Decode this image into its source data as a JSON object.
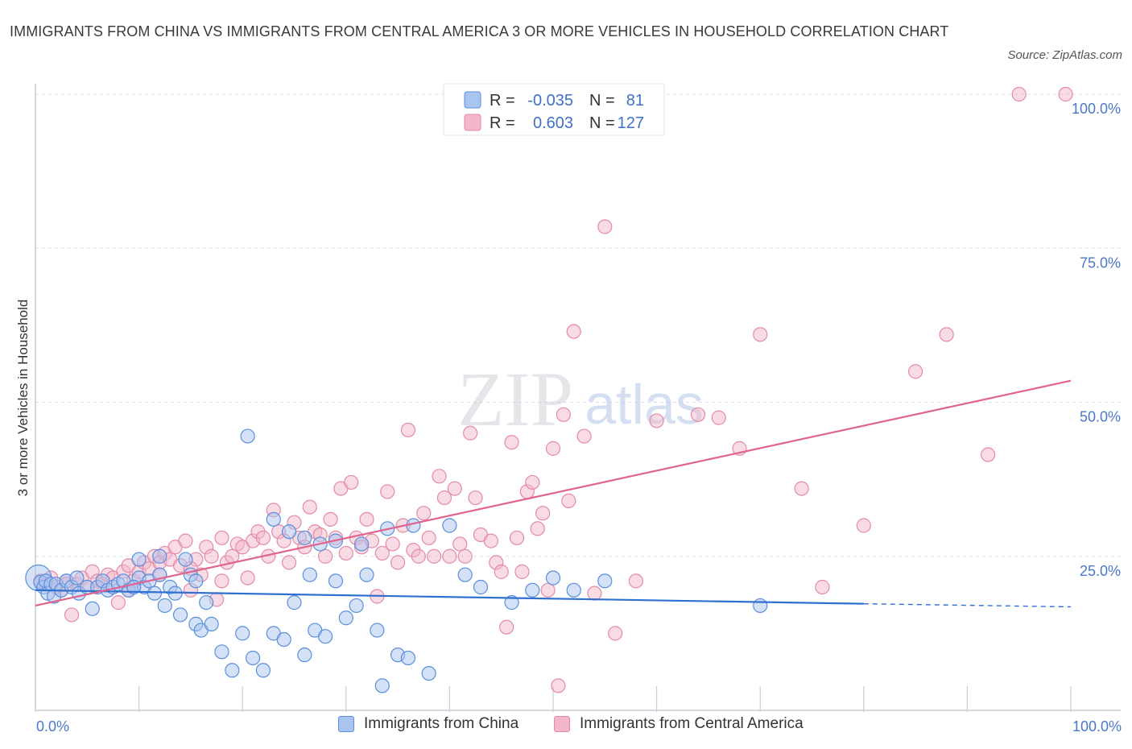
{
  "header": {
    "title": "IMMIGRANTS FROM CHINA VS IMMIGRANTS FROM CENTRAL AMERICA 3 OR MORE VEHICLES IN HOUSEHOLD CORRELATION CHART",
    "source": "Source: ZipAtlas.com"
  },
  "watermark": {
    "zip": "ZIP",
    "atlas": "atlas"
  },
  "legend_top": {
    "rows": [
      {
        "r_label": "R =",
        "r_value": "-0.035",
        "n_label": "N =",
        "n_value": "81"
      },
      {
        "r_label": "R =",
        "r_value": "0.603",
        "n_label": "N =",
        "n_value": "127"
      }
    ]
  },
  "legend_bottom": {
    "china": "Immigrants from China",
    "central_america": "Immigrants from Central America"
  },
  "colors": {
    "china_fill": "#a9c4ef",
    "china_stroke": "#5a8fdc",
    "china_line": "#2e6fd0",
    "ca_fill": "#f4b7ca",
    "ca_stroke": "#e48aa8",
    "ca_line": "#e0648e",
    "tick_text": "#4a78c8",
    "grid": "#d8dde6"
  },
  "chart_data": {
    "type": "scatter",
    "title": "IMMIGRANTS FROM CHINA VS IMMIGRANTS FROM CENTRAL AMERICA 3 OR MORE VEHICLES IN HOUSEHOLD CORRELATION CHART",
    "xlabel": "",
    "ylabel": "3 or more Vehicles in Household",
    "xlim": [
      0,
      100
    ],
    "ylim": [
      0,
      100
    ],
    "x_tick_labels": [
      "0.0%",
      "100.0%"
    ],
    "y_tick_labels": [
      "25.0%",
      "50.0%",
      "75.0%",
      "100.0%"
    ],
    "y_ticks": [
      25,
      50,
      75,
      100
    ],
    "grid": true,
    "legend_position": "top-center",
    "series": [
      {
        "name": "Immigrants from China",
        "R": -0.035,
        "N": 81,
        "trend": {
          "x0": 0,
          "y0": 19.5,
          "x1": 80,
          "y1": 17.3,
          "dashed_to_x": 100,
          "dashed_to_y": 16.8
        },
        "points": [
          [
            0.3,
            21.5
          ],
          [
            0.5,
            20.8
          ],
          [
            0.8,
            20.0
          ],
          [
            1.0,
            21.0
          ],
          [
            1.2,
            19.0
          ],
          [
            1.5,
            20.5
          ],
          [
            1.8,
            18.5
          ],
          [
            2.0,
            20.5
          ],
          [
            2.5,
            19.5
          ],
          [
            3.0,
            21.0
          ],
          [
            3.5,
            20.0
          ],
          [
            4.0,
            21.5
          ],
          [
            4.2,
            19.0
          ],
          [
            5.0,
            20.0
          ],
          [
            5.5,
            16.5
          ],
          [
            6.0,
            20.0
          ],
          [
            6.5,
            21.0
          ],
          [
            7.0,
            19.5
          ],
          [
            7.5,
            20.0
          ],
          [
            8.0,
            20.5
          ],
          [
            8.5,
            21.0
          ],
          [
            9.0,
            19.5
          ],
          [
            9.5,
            20.0
          ],
          [
            10.0,
            21.5
          ],
          [
            10.5,
            20.0
          ],
          [
            11.0,
            21.0
          ],
          [
            11.5,
            19.0
          ],
          [
            12.0,
            22.0
          ],
          [
            12.5,
            17.0
          ],
          [
            13.0,
            20.0
          ],
          [
            13.5,
            19.0
          ],
          [
            14.0,
            15.5
          ],
          [
            14.5,
            24.5
          ],
          [
            15.0,
            22.0
          ],
          [
            15.5,
            14.0
          ],
          [
            16.0,
            13.0
          ],
          [
            16.5,
            17.5
          ],
          [
            17.0,
            14.0
          ],
          [
            18.0,
            9.5
          ],
          [
            19.0,
            6.5
          ],
          [
            20.0,
            12.5
          ],
          [
            21.0,
            8.5
          ],
          [
            22.0,
            6.5
          ],
          [
            23.0,
            12.5
          ],
          [
            24.0,
            11.5
          ],
          [
            24.5,
            29.0
          ],
          [
            25.0,
            17.5
          ],
          [
            26.0,
            9.0
          ],
          [
            26.5,
            22.0
          ],
          [
            27.0,
            13.0
          ],
          [
            28.0,
            12.0
          ],
          [
            29.0,
            21.0
          ],
          [
            30.0,
            15.0
          ],
          [
            31.0,
            17.0
          ],
          [
            32.0,
            22.0
          ],
          [
            33.0,
            13.0
          ],
          [
            33.5,
            4.0
          ],
          [
            35.0,
            9.0
          ],
          [
            36.0,
            8.5
          ],
          [
            38.0,
            6.0
          ],
          [
            9.5,
            20.0
          ],
          [
            12.0,
            25.0
          ],
          [
            10.0,
            24.5
          ],
          [
            15.5,
            21.0
          ],
          [
            20.5,
            44.5
          ],
          [
            23.0,
            31.0
          ],
          [
            26.0,
            28.0
          ],
          [
            27.5,
            27.0
          ],
          [
            29.0,
            27.5
          ],
          [
            31.5,
            27.0
          ],
          [
            34.0,
            29.5
          ],
          [
            36.5,
            30.0
          ],
          [
            40.0,
            30.0
          ],
          [
            41.5,
            22.0
          ],
          [
            43.0,
            20.0
          ],
          [
            46.0,
            17.5
          ],
          [
            48.0,
            19.5
          ],
          [
            50.0,
            21.5
          ],
          [
            52.0,
            19.5
          ],
          [
            55.0,
            21.0
          ],
          [
            70.0,
            17.0
          ]
        ]
      },
      {
        "name": "Immigrants from Central America",
        "R": 0.603,
        "N": 127,
        "trend": {
          "x0": 0,
          "y0": 17.0,
          "x1": 100,
          "y1": 53.5
        },
        "points": [
          [
            0.5,
            21.0
          ],
          [
            1.0,
            20.5
          ],
          [
            1.5,
            21.5
          ],
          [
            2.0,
            20.0
          ],
          [
            2.5,
            19.5
          ],
          [
            3.0,
            21.0
          ],
          [
            3.5,
            15.5
          ],
          [
            4.0,
            20.5
          ],
          [
            4.5,
            21.5
          ],
          [
            5.0,
            20.0
          ],
          [
            5.5,
            22.5
          ],
          [
            6.0,
            21.0
          ],
          [
            6.5,
            20.5
          ],
          [
            7.0,
            22.0
          ],
          [
            7.5,
            21.5
          ],
          [
            8.0,
            17.5
          ],
          [
            8.5,
            22.5
          ],
          [
            9.0,
            23.5
          ],
          [
            9.5,
            21.0
          ],
          [
            10.0,
            22.5
          ],
          [
            10.5,
            24.0
          ],
          [
            11.0,
            23.0
          ],
          [
            11.5,
            25.0
          ],
          [
            12.0,
            24.0
          ],
          [
            12.5,
            25.5
          ],
          [
            13.0,
            24.5
          ],
          [
            13.5,
            26.5
          ],
          [
            14.0,
            23.5
          ],
          [
            14.5,
            27.5
          ],
          [
            15.0,
            19.5
          ],
          [
            15.5,
            24.5
          ],
          [
            16.0,
            22.0
          ],
          [
            16.5,
            26.5
          ],
          [
            17.0,
            25.0
          ],
          [
            17.5,
            18.0
          ],
          [
            18.0,
            28.0
          ],
          [
            18.5,
            24.0
          ],
          [
            19.0,
            25.0
          ],
          [
            19.5,
            27.0
          ],
          [
            20.0,
            26.5
          ],
          [
            20.5,
            21.5
          ],
          [
            21.0,
            27.5
          ],
          [
            21.5,
            29.0
          ],
          [
            22.0,
            28.0
          ],
          [
            22.5,
            25.0
          ],
          [
            23.0,
            32.5
          ],
          [
            23.5,
            29.0
          ],
          [
            24.0,
            27.5
          ],
          [
            24.5,
            24.0
          ],
          [
            25.0,
            30.5
          ],
          [
            25.5,
            28.0
          ],
          [
            26.0,
            26.5
          ],
          [
            26.5,
            33.0
          ],
          [
            27.0,
            29.0
          ],
          [
            27.5,
            28.5
          ],
          [
            28.0,
            25.0
          ],
          [
            28.5,
            31.0
          ],
          [
            29.0,
            28.0
          ],
          [
            29.5,
            36.0
          ],
          [
            30.0,
            25.5
          ],
          [
            30.5,
            37.0
          ],
          [
            31.0,
            28.0
          ],
          [
            31.5,
            26.5
          ],
          [
            32.0,
            31.0
          ],
          [
            32.5,
            27.5
          ],
          [
            33.0,
            18.5
          ],
          [
            33.5,
            25.5
          ],
          [
            34.0,
            35.5
          ],
          [
            34.5,
            27.0
          ],
          [
            35.0,
            24.0
          ],
          [
            35.5,
            30.0
          ],
          [
            36.0,
            45.5
          ],
          [
            36.5,
            26.0
          ],
          [
            37.0,
            25.0
          ],
          [
            37.5,
            32.0
          ],
          [
            38.0,
            28.0
          ],
          [
            38.5,
            25.0
          ],
          [
            39.0,
            38.0
          ],
          [
            39.5,
            34.5
          ],
          [
            40.0,
            25.0
          ],
          [
            40.5,
            36.0
          ],
          [
            41.0,
            27.0
          ],
          [
            41.5,
            25.0
          ],
          [
            42.0,
            45.0
          ],
          [
            42.5,
            34.5
          ],
          [
            43.0,
            28.5
          ],
          [
            44.0,
            27.5
          ],
          [
            44.5,
            24.0
          ],
          [
            45.0,
            22.5
          ],
          [
            45.5,
            13.5
          ],
          [
            46.0,
            43.5
          ],
          [
            46.5,
            28.0
          ],
          [
            47.0,
            22.5
          ],
          [
            47.5,
            35.5
          ],
          [
            48.0,
            37.0
          ],
          [
            48.5,
            29.5
          ],
          [
            49.0,
            32.0
          ],
          [
            49.5,
            19.5
          ],
          [
            50.0,
            42.5
          ],
          [
            50.5,
            4.0
          ],
          [
            51.0,
            48.0
          ],
          [
            51.5,
            34.0
          ],
          [
            52.0,
            61.5
          ],
          [
            53.0,
            44.5
          ],
          [
            54.0,
            19.0
          ],
          [
            55.0,
            78.5
          ],
          [
            56.0,
            12.5
          ],
          [
            58.0,
            21.0
          ],
          [
            60.0,
            47.0
          ],
          [
            64.0,
            48.0
          ],
          [
            66.0,
            47.5
          ],
          [
            68.0,
            42.5
          ],
          [
            70.0,
            61.0
          ],
          [
            74.0,
            36.0
          ],
          [
            76.0,
            20.0
          ],
          [
            80.0,
            30.0
          ],
          [
            85.0,
            55.0
          ],
          [
            88.0,
            61.0
          ],
          [
            92.0,
            41.5
          ],
          [
            95.0,
            100.0
          ],
          [
            99.5,
            100.0
          ],
          [
            3.0,
            20.5
          ],
          [
            6.0,
            20.0
          ],
          [
            9.0,
            19.5
          ],
          [
            12.0,
            22.0
          ],
          [
            15.0,
            23.0
          ],
          [
            18.0,
            21.0
          ]
        ]
      }
    ]
  }
}
